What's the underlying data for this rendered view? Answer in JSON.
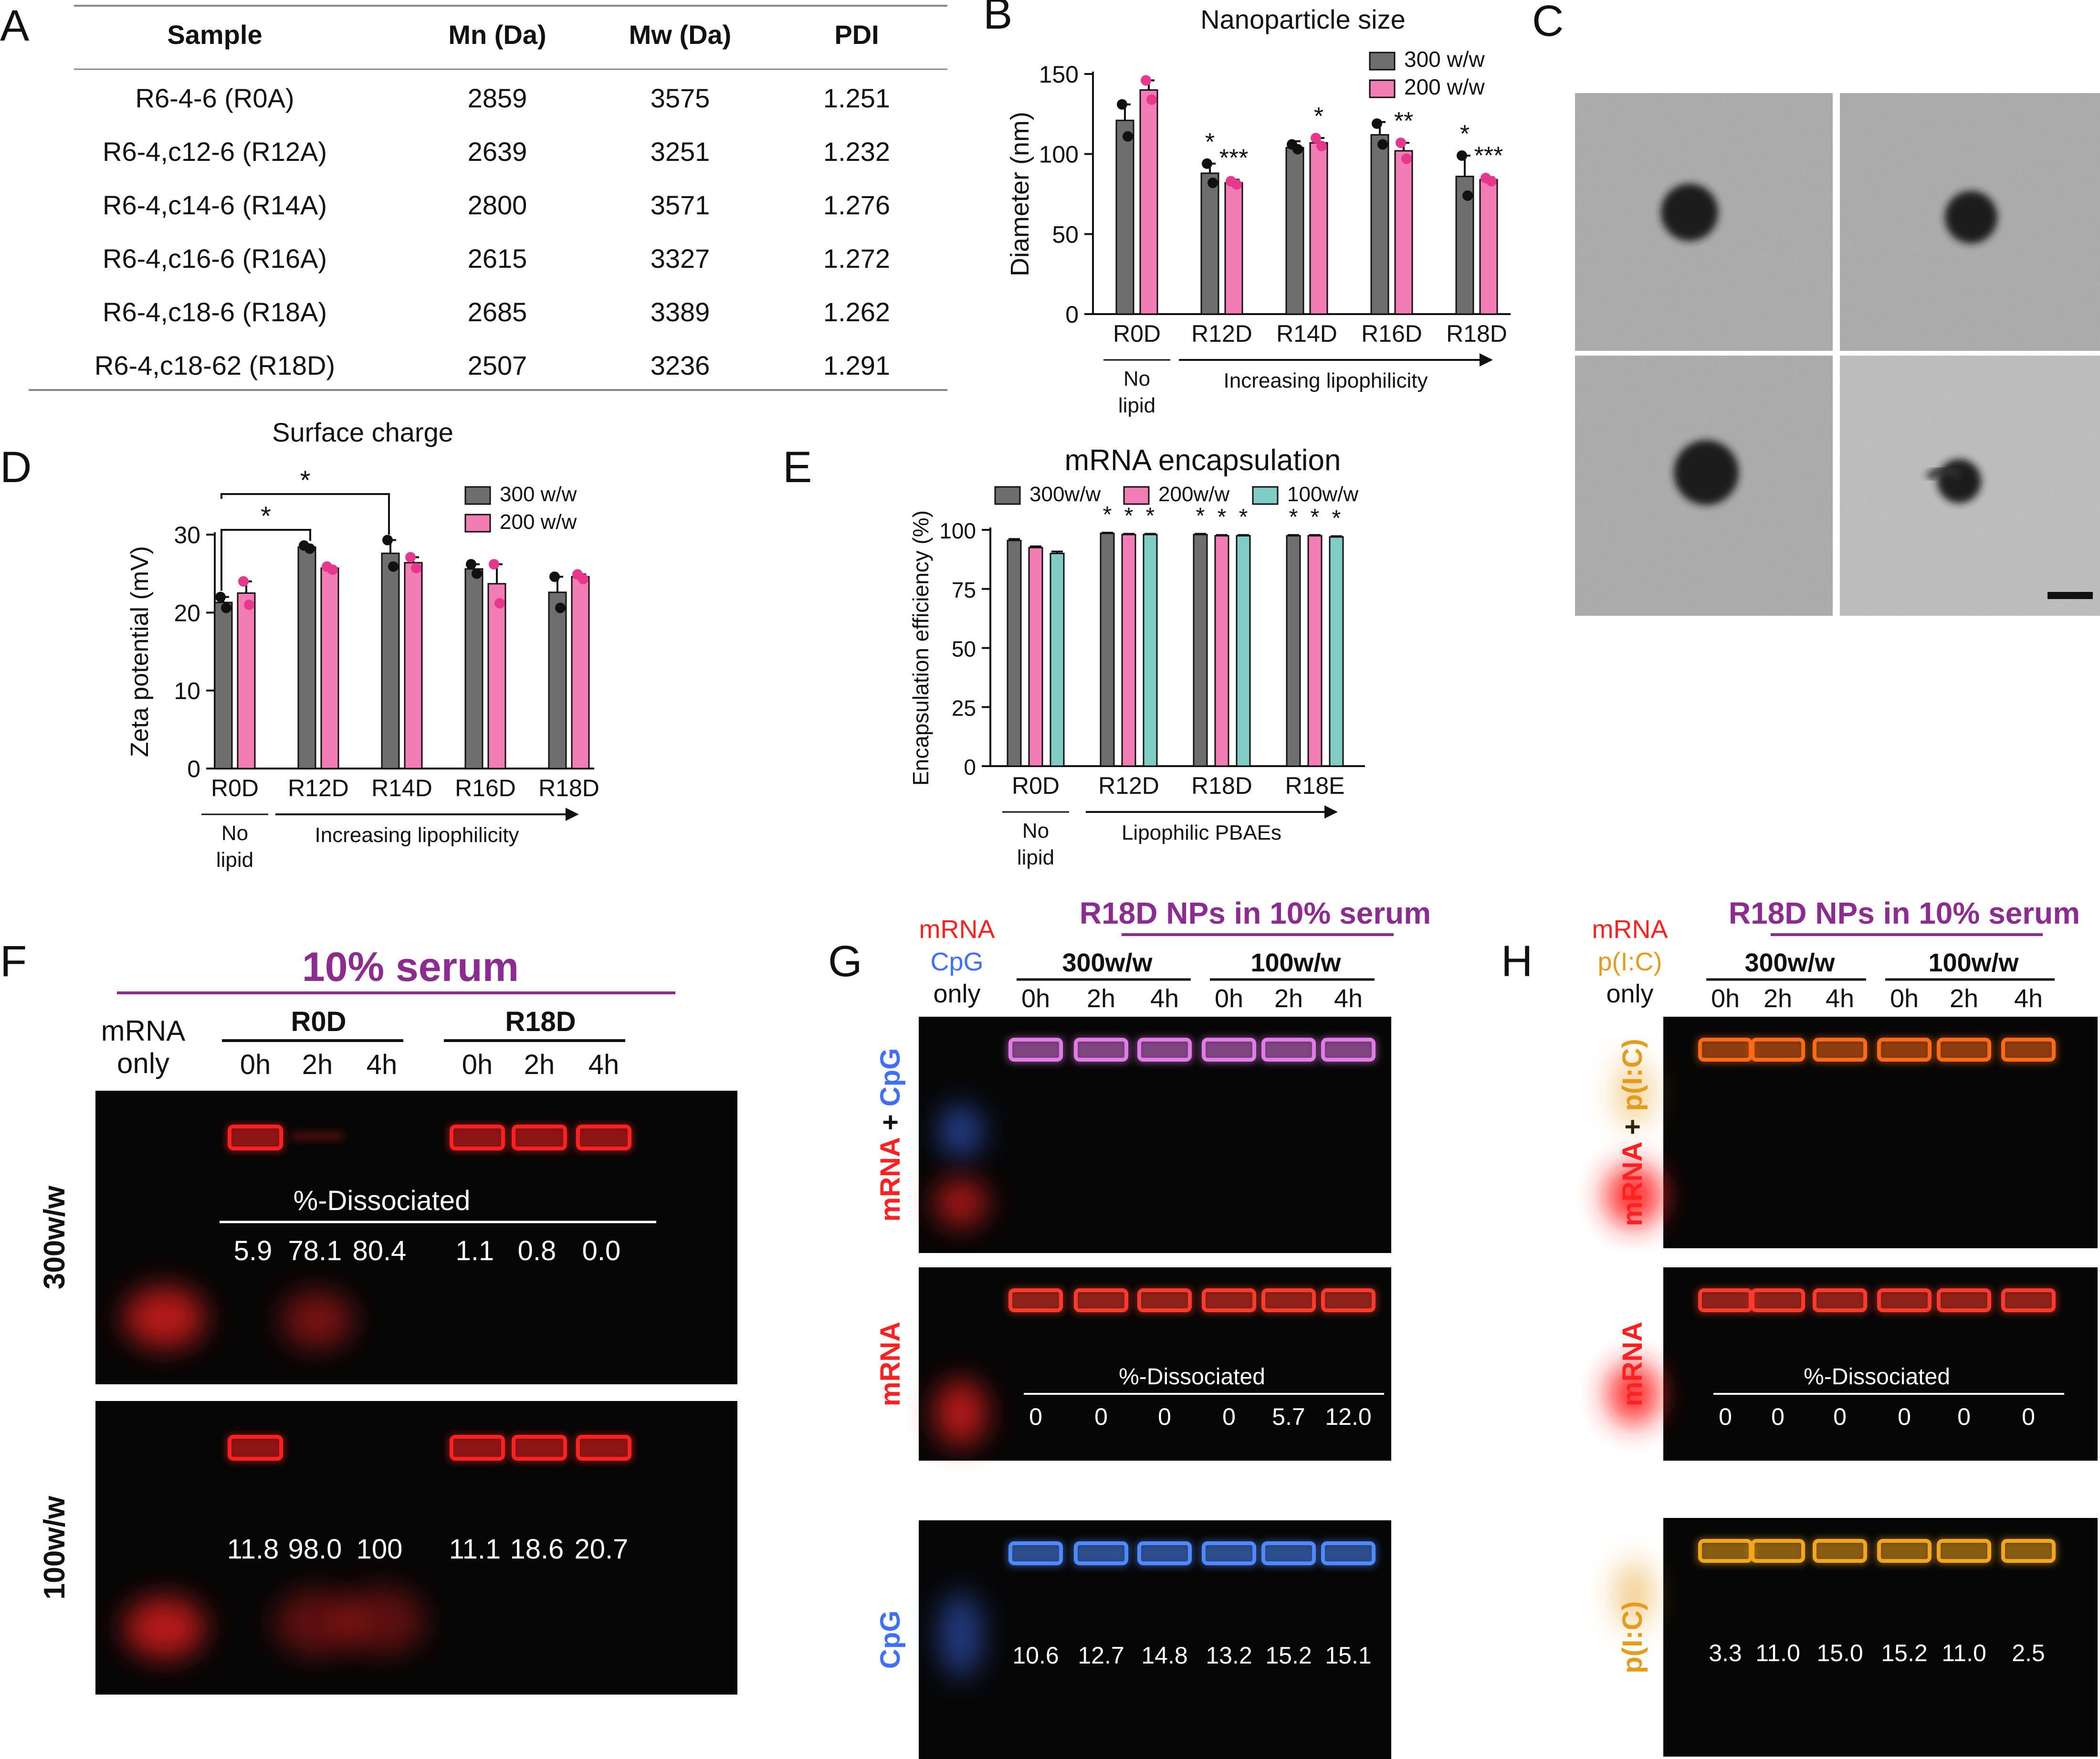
{
  "colors": {
    "gray": "#6e6e6e",
    "pink": "#f27db5",
    "teal": "#7fcdc4",
    "purple": "#8c2c91",
    "red": "#ff2020",
    "blue": "#3f6fff",
    "orange": "#e59c1d",
    "gel_bg": "#060606"
  },
  "panel_letters": [
    "A",
    "B",
    "C",
    "D",
    "E",
    "F",
    "G",
    "H"
  ],
  "table": {
    "headers": [
      "Sample",
      "Mn (Da)",
      "Mw (Da)",
      "PDI"
    ],
    "rows": [
      [
        "R6-4-6 (R0A)",
        "2859",
        "3575",
        "1.251"
      ],
      [
        "R6-4,c12-6 (R12A)",
        "2639",
        "3251",
        "1.232"
      ],
      [
        "R6-4,c14-6 (R14A)",
        "2800",
        "3571",
        "1.276"
      ],
      [
        "R6-4,c16-6 (R16A)",
        "2615",
        "3327",
        "1.272"
      ],
      [
        "R6-4,c18-6 (R18A)",
        "2685",
        "3389",
        "1.262"
      ],
      [
        "R6-4,c18-62 (R18D)",
        "2507",
        "3236",
        "1.291"
      ]
    ]
  },
  "chart_data": [
    {
      "id": "B",
      "type": "bar",
      "title": "Nanoparticle size",
      "ylabel": "Diameter (nm)",
      "ylim": [
        0,
        150
      ],
      "yticks": [
        0,
        50,
        100,
        150
      ],
      "categories": [
        "R0D",
        "R12D",
        "R14D",
        "R16D",
        "R18D"
      ],
      "series": [
        {
          "name": "300 w/w",
          "color": "#6e6e6e",
          "values": [
            121,
            88,
            104,
            112,
            86
          ],
          "errors": [
            10,
            6,
            4,
            8,
            13
          ],
          "points": [
            [
              131,
              111
            ],
            [
              94,
              82
            ],
            [
              106,
              103
            ],
            [
              119,
              106
            ],
            [
              99,
              74
            ]
          ]
        },
        {
          "name": "200 w/w",
          "color": "#f27db5",
          "values": [
            140,
            82,
            107,
            102,
            84
          ],
          "errors": [
            6,
            2,
            3,
            5,
            1.5
          ],
          "points": [
            [
              146,
              134
            ],
            [
              83,
              81
            ],
            [
              110,
              105
            ],
            [
              107,
              97
            ],
            [
              85,
              83
            ]
          ]
        }
      ],
      "significance": [
        [
          "",
          ""
        ],
        [
          "*",
          "***"
        ],
        [
          "",
          "*"
        ],
        [
          "",
          "**"
        ],
        [
          "*",
          "***"
        ]
      ],
      "group_label": "No lipid",
      "arrow_label": "Increasing lipophilicity"
    },
    {
      "id": "D",
      "type": "bar",
      "title": "Surface charge",
      "ylabel": "Zeta potential (mV)",
      "ylim": [
        0,
        30
      ],
      "yticks": [
        0,
        10,
        20,
        30
      ],
      "categories": [
        "R0D",
        "R12D",
        "R14D",
        "R16D",
        "R18D"
      ],
      "series": [
        {
          "name": "300 w/w",
          "color": "#6e6e6e",
          "values": [
            21.3,
            28.4,
            27.6,
            25.6,
            22.6
          ],
          "errors": [
            0.7,
            0.3,
            1.7,
            0.6,
            2
          ],
          "points": [
            [
              22,
              20.6
            ],
            [
              28.6,
              28.2
            ],
            [
              29.3,
              25.9
            ],
            [
              26.2,
              25
            ],
            [
              24.6,
              20.6
            ]
          ]
        },
        {
          "name": "200 w/w",
          "color": "#f27db5",
          "values": [
            22.5,
            25.7,
            26.4,
            23.7,
            24.6
          ],
          "errors": [
            1.5,
            0.2,
            0.7,
            2.5,
            0.3
          ],
          "points": [
            [
              24,
              21
            ],
            [
              25.9,
              25.5
            ],
            [
              27.1,
              25.7
            ],
            [
              26.2,
              21.2
            ],
            [
              24.9,
              24.3
            ]
          ]
        }
      ],
      "significance_brackets": [
        {
          "from": "R0D",
          "to": "R12D",
          "label": "*"
        },
        {
          "from": "R0D",
          "to": "R14D",
          "label": "*"
        }
      ],
      "group_label": "No lipid",
      "arrow_label": "Increasing lipophilicity"
    },
    {
      "id": "E",
      "type": "bar",
      "title": "mRNA encapsulation",
      "ylabel": "Encapsulation efficiency (%)",
      "ylim": [
        0,
        100
      ],
      "yticks": [
        0,
        25,
        50,
        75,
        100
      ],
      "categories": [
        "R0D",
        "R12D",
        "R18D",
        "R18E"
      ],
      "series": [
        {
          "name": "300w/w",
          "color": "#6e6e6e",
          "values": [
            95.5,
            98.5,
            98,
            97.5
          ],
          "errors": [
            0.6,
            0.3,
            0.3,
            0.3
          ]
        },
        {
          "name": "200w/w",
          "color": "#f27db5",
          "values": [
            92.5,
            98,
            97.5,
            97.5
          ],
          "errors": [
            0.5,
            0.3,
            0.3,
            0.3
          ]
        },
        {
          "name": "100w/w",
          "color": "#7fcdc4",
          "values": [
            90,
            98,
            97.5,
            97
          ],
          "errors": [
            0.8,
            0.3,
            0.3,
            0.3
          ]
        }
      ],
      "significance": [
        [
          "",
          "",
          ""
        ],
        [
          "*",
          "*",
          "*"
        ],
        [
          "*",
          "*",
          "*"
        ],
        [
          "*",
          "*",
          "*"
        ]
      ],
      "group_label": "No lipid",
      "arrow_label": "Lipophilic PBAEs"
    }
  ],
  "panel_c": {
    "scale_bar": true
  },
  "panel_f": {
    "title": "10% serum",
    "lane0_label": "mRNA only",
    "groups": [
      {
        "name": "R0D",
        "times": [
          "0h",
          "2h",
          "4h"
        ]
      },
      {
        "name": "R18D",
        "times": [
          "0h",
          "2h",
          "4h"
        ]
      }
    ],
    "rows": [
      {
        "label": "300w/w",
        "caption": "%-Dissociated",
        "values": [
          "5.9",
          "78.1",
          "80.4",
          "1.1",
          "0.8",
          "0.0"
        ]
      },
      {
        "label": "100w/w",
        "caption": "",
        "values": [
          "11.8",
          "98.0",
          "100",
          "11.1",
          "18.6",
          "20.7"
        ]
      }
    ]
  },
  "panel_g": {
    "title": "R18D NPs in 10% serum",
    "lane0_label": [
      "mRNA",
      "CpG",
      "only"
    ],
    "groups": [
      {
        "name": "300w/w",
        "times": [
          "0h",
          "2h",
          "4h"
        ]
      },
      {
        "name": "100w/w",
        "times": [
          "0h",
          "2h",
          "4h"
        ]
      }
    ],
    "rows": [
      {
        "label_parts": [
          "mRNA",
          " + ",
          "CpG"
        ],
        "caption": "",
        "values": []
      },
      {
        "label_parts": [
          "mRNA"
        ],
        "caption": "%-Dissociated",
        "values": [
          "0",
          "0",
          "0",
          "0",
          "5.7",
          "12.0"
        ]
      },
      {
        "label_parts": [
          "CpG"
        ],
        "caption": "",
        "values": [
          "10.6",
          "12.7",
          "14.8",
          "13.2",
          "15.2",
          "15.1"
        ]
      }
    ]
  },
  "panel_h": {
    "title": "R18D NPs in 10% serum",
    "lane0_label": [
      "mRNA",
      "p(I:C)",
      "only"
    ],
    "groups": [
      {
        "name": "300w/w",
        "times": [
          "0h",
          "2h",
          "4h"
        ]
      },
      {
        "name": "100w/w",
        "times": [
          "0h",
          "2h",
          "4h"
        ]
      }
    ],
    "rows": [
      {
        "label_parts": [
          "mRNA",
          " + ",
          "p(I:C)"
        ],
        "caption": "",
        "values": []
      },
      {
        "label_parts": [
          "mRNA"
        ],
        "caption": "%-Dissociated",
        "values": [
          "0",
          "0",
          "0",
          "0",
          "0",
          "0"
        ]
      },
      {
        "label_parts": [
          "p(I:C)"
        ],
        "caption": "",
        "values": [
          "3.3",
          "11.0",
          "15.0",
          "15.2",
          "11.0",
          "2.5"
        ]
      }
    ]
  }
}
